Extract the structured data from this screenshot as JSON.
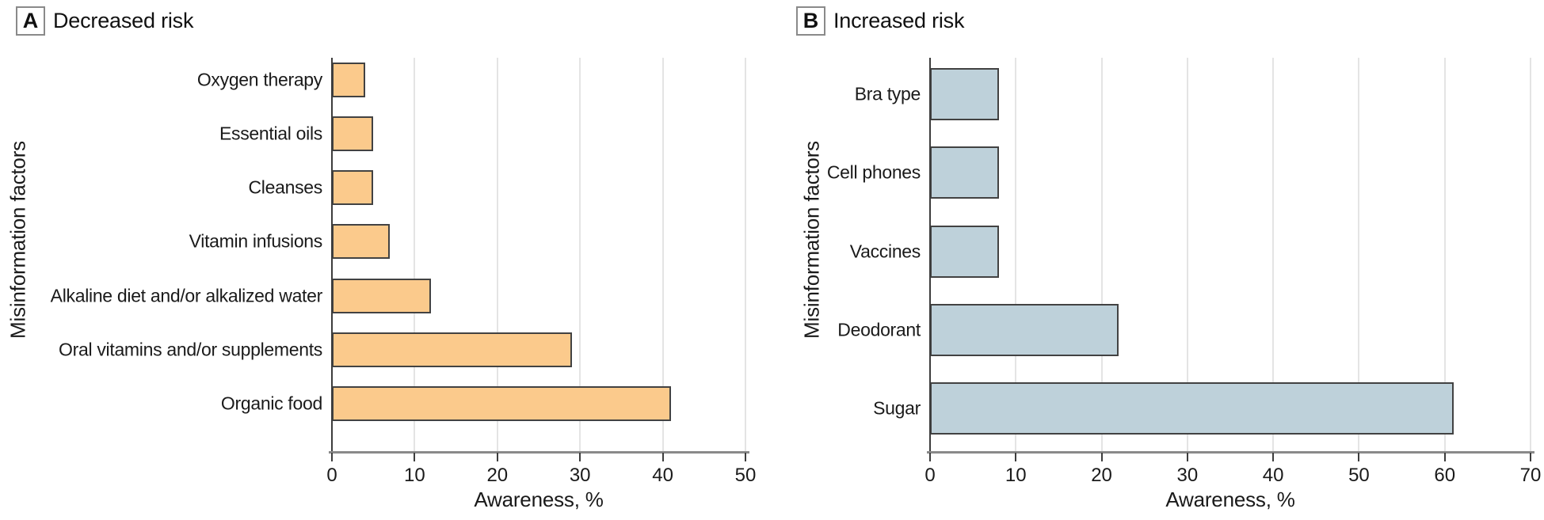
{
  "figure": {
    "background": "#ffffff"
  },
  "styles": {
    "gridline_color": "#e4e4e4",
    "baseline_color": "#8a8a8a",
    "tick_color": "#3d3d3d",
    "yaxis_line_color": "#3d3d3d",
    "text_color": "#1a1a1a"
  },
  "chart_data": [
    {
      "type": "bar",
      "orientation": "horizontal",
      "panel_letter": "A",
      "title": "Decreased risk",
      "categories": [
        "Oxygen therapy",
        "Essential oils",
        "Cleanses",
        "Vitamin infusions",
        "Alkaline diet and/or alkalized water",
        "Oral vitamins and/or supplements",
        "Organic food"
      ],
      "values": [
        4,
        5,
        5,
        7,
        12,
        29,
        41
      ],
      "xlabel": "Awareness, %",
      "ylabel": "Misinformation factors",
      "xlim": [
        0,
        50
      ],
      "xticks": [
        0,
        10,
        20,
        30,
        40,
        50
      ],
      "grid": true,
      "legend": "none",
      "bar_color": "#fbca8c",
      "bar_border_color": "#424242"
    },
    {
      "type": "bar",
      "orientation": "horizontal",
      "panel_letter": "B",
      "title": "Increased risk",
      "categories": [
        "Bra type",
        "Cell phones",
        "Vaccines",
        "Deodorant",
        "Sugar"
      ],
      "values": [
        8,
        8,
        8,
        22,
        61
      ],
      "xlabel": "Awareness, %",
      "ylabel": "Misinformation factors",
      "xlim": [
        0,
        70
      ],
      "xticks": [
        0,
        10,
        20,
        30,
        40,
        50,
        60,
        70
      ],
      "grid": true,
      "legend": "none",
      "bar_color": "#bed1da",
      "bar_border_color": "#424242"
    }
  ]
}
